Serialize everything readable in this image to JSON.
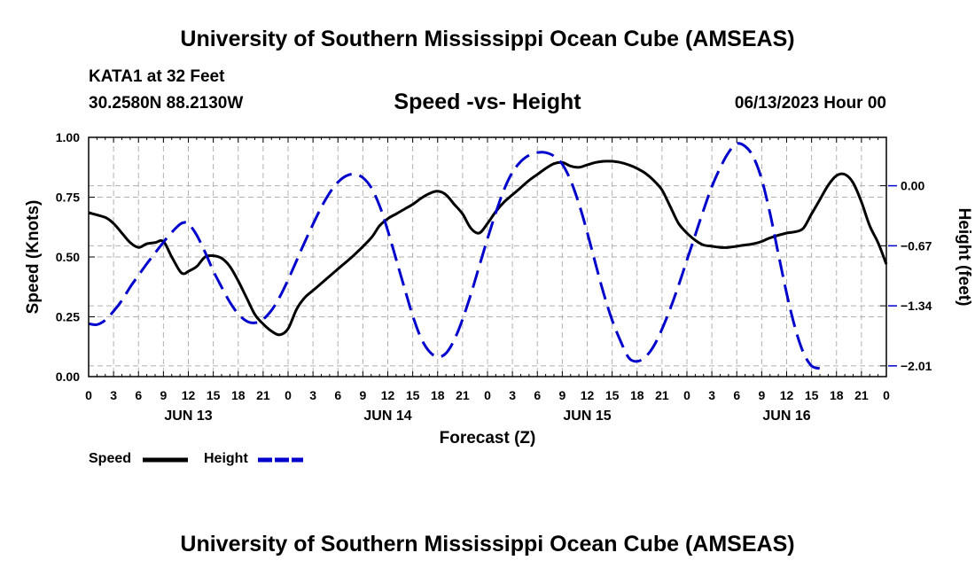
{
  "header": {
    "title": "University of Southern Mississippi Ocean Cube (AMSEAS)",
    "station": "KATA1 at 32 Feet",
    "coords": "30.2580N  88.2130W",
    "chart_title": "Speed -vs- Height",
    "date": "06/13/2023 Hour 00"
  },
  "footer": {
    "title": "University of Southern Mississippi Ocean Cube (AMSEAS)"
  },
  "colors": {
    "speed": "#000000",
    "height": "#0000cc",
    "grid": "#b0b0b0"
  },
  "chart_data": {
    "type": "line",
    "title": "Speed -vs- Height",
    "xlabel": "Forecast (Z)",
    "ylabel": "Speed (Knots)",
    "y2label": "Height (feet)",
    "xlim": [
      0,
      96
    ],
    "ylim": [
      0,
      1
    ],
    "y2lim": [
      -2.13,
      0.54
    ],
    "x_tick_step": 3,
    "x_ticks": [
      "0",
      "3",
      "6",
      "9",
      "12",
      "15",
      "18",
      "21",
      "0",
      "3",
      "6",
      "9",
      "12",
      "15",
      "18",
      "21",
      "0",
      "3",
      "6",
      "9",
      "12",
      "15",
      "18",
      "21",
      "0",
      "3",
      "6",
      "9",
      "12",
      "15",
      "18",
      "21",
      "0"
    ],
    "y_ticks": [
      "0.00",
      "0.25",
      "0.50",
      "0.75",
      "1.00"
    ],
    "y2_ticks": [
      {
        "value": 0.0,
        "label": "0.00"
      },
      {
        "value": -0.67,
        "label": "−0.67"
      },
      {
        "value": -1.34,
        "label": "−1.34"
      },
      {
        "value": -2.01,
        "label": "−2.01"
      }
    ],
    "day_labels": [
      {
        "x": 12,
        "label": "JUN 13"
      },
      {
        "x": 36,
        "label": "JUN 14"
      },
      {
        "x": 60,
        "label": "JUN 15"
      },
      {
        "x": 84,
        "label": "JUN 16"
      }
    ],
    "legend": [
      {
        "name": "Speed",
        "style": "solid"
      },
      {
        "name": "Height",
        "style": "dashed"
      }
    ],
    "series": [
      {
        "name": "Speed",
        "axis": "left",
        "points": [
          [
            0,
            0.685
          ],
          [
            2,
            0.665
          ],
          [
            3,
            0.64
          ],
          [
            4,
            0.6
          ],
          [
            5,
            0.56
          ],
          [
            6,
            0.54
          ],
          [
            7,
            0.555
          ],
          [
            8,
            0.56
          ],
          [
            9,
            0.565
          ],
          [
            10,
            0.5
          ],
          [
            11,
            0.44
          ],
          [
            11.5,
            0.43
          ],
          [
            12,
            0.44
          ],
          [
            13,
            0.46
          ],
          [
            14,
            0.5
          ],
          [
            15,
            0.505
          ],
          [
            16,
            0.495
          ],
          [
            17,
            0.46
          ],
          [
            18,
            0.4
          ],
          [
            19,
            0.33
          ],
          [
            20,
            0.26
          ],
          [
            21,
            0.22
          ],
          [
            22,
            0.19
          ],
          [
            23,
            0.175
          ],
          [
            24,
            0.2
          ],
          [
            25,
            0.28
          ],
          [
            26,
            0.33
          ],
          [
            27,
            0.36
          ],
          [
            28,
            0.39
          ],
          [
            30,
            0.45
          ],
          [
            32,
            0.51
          ],
          [
            34,
            0.58
          ],
          [
            35,
            0.63
          ],
          [
            36,
            0.66
          ],
          [
            37,
            0.68
          ],
          [
            38,
            0.7
          ],
          [
            39,
            0.72
          ],
          [
            40,
            0.745
          ],
          [
            41,
            0.765
          ],
          [
            42,
            0.775
          ],
          [
            43,
            0.76
          ],
          [
            44,
            0.72
          ],
          [
            45,
            0.68
          ],
          [
            46,
            0.62
          ],
          [
            47,
            0.6
          ],
          [
            48,
            0.64
          ],
          [
            49,
            0.69
          ],
          [
            50,
            0.73
          ],
          [
            51,
            0.76
          ],
          [
            52,
            0.79
          ],
          [
            53,
            0.82
          ],
          [
            54,
            0.845
          ],
          [
            55,
            0.87
          ],
          [
            56,
            0.89
          ],
          [
            57,
            0.895
          ],
          [
            58,
            0.88
          ],
          [
            59,
            0.875
          ],
          [
            60,
            0.885
          ],
          [
            61,
            0.895
          ],
          [
            62,
            0.9
          ],
          [
            63,
            0.9
          ],
          [
            64,
            0.895
          ],
          [
            65,
            0.885
          ],
          [
            66,
            0.87
          ],
          [
            67,
            0.85
          ],
          [
            68,
            0.82
          ],
          [
            69,
            0.78
          ],
          [
            70,
            0.71
          ],
          [
            71,
            0.64
          ],
          [
            72,
            0.6
          ],
          [
            73,
            0.57
          ],
          [
            74,
            0.55
          ],
          [
            75,
            0.545
          ],
          [
            76,
            0.54
          ],
          [
            77,
            0.54
          ],
          [
            78,
            0.545
          ],
          [
            79,
            0.55
          ],
          [
            80,
            0.555
          ],
          [
            81,
            0.565
          ],
          [
            82,
            0.58
          ],
          [
            84,
            0.6
          ],
          [
            85,
            0.605
          ],
          [
            86,
            0.62
          ],
          [
            87,
            0.68
          ],
          [
            88,
            0.74
          ],
          [
            89,
            0.8
          ],
          [
            90,
            0.84
          ],
          [
            91,
            0.845
          ],
          [
            92,
            0.81
          ],
          [
            93,
            0.73
          ],
          [
            94,
            0.63
          ],
          [
            95,
            0.56
          ],
          [
            96,
            0.47
          ]
        ]
      },
      {
        "name": "Height",
        "axis": "right",
        "points": [
          [
            0,
            -1.54
          ],
          [
            1,
            -1.55
          ],
          [
            2,
            -1.5
          ],
          [
            3,
            -1.4
          ],
          [
            4,
            -1.28
          ],
          [
            5,
            -1.13
          ],
          [
            6,
            -1.0
          ],
          [
            7,
            -0.87
          ],
          [
            8,
            -0.75
          ],
          [
            9,
            -0.63
          ],
          [
            10,
            -0.52
          ],
          [
            11,
            -0.43
          ],
          [
            11.5,
            -0.41
          ],
          [
            12,
            -0.42
          ],
          [
            13,
            -0.55
          ],
          [
            14,
            -0.74
          ],
          [
            15,
            -0.95
          ],
          [
            16,
            -1.13
          ],
          [
            17,
            -1.3
          ],
          [
            18,
            -1.43
          ],
          [
            19,
            -1.51
          ],
          [
            20,
            -1.53
          ],
          [
            21,
            -1.49
          ],
          [
            22,
            -1.39
          ],
          [
            23,
            -1.24
          ],
          [
            24,
            -1.05
          ],
          [
            25,
            -0.84
          ],
          [
            26,
            -0.63
          ],
          [
            27,
            -0.43
          ],
          [
            28,
            -0.24
          ],
          [
            29,
            -0.08
          ],
          [
            30,
            0.04
          ],
          [
            31,
            0.11
          ],
          [
            32,
            0.13
          ],
          [
            33,
            0.09
          ],
          [
            34,
            -0.02
          ],
          [
            35,
            -0.22
          ],
          [
            36,
            -0.5
          ],
          [
            37,
            -0.82
          ],
          [
            38,
            -1.14
          ],
          [
            39,
            -1.45
          ],
          [
            40,
            -1.7
          ],
          [
            41,
            -1.85
          ],
          [
            42,
            -1.91
          ],
          [
            43,
            -1.87
          ],
          [
            44,
            -1.72
          ],
          [
            45,
            -1.49
          ],
          [
            46,
            -1.21
          ],
          [
            47,
            -0.9
          ],
          [
            48,
            -0.59
          ],
          [
            49,
            -0.3
          ],
          [
            50,
            -0.04
          ],
          [
            51,
            0.15
          ],
          [
            52,
            0.27
          ],
          [
            53,
            0.34
          ],
          [
            54,
            0.37
          ],
          [
            55,
            0.37
          ],
          [
            56,
            0.33
          ],
          [
            57,
            0.24
          ],
          [
            58,
            0.06
          ],
          [
            59,
            -0.2
          ],
          [
            60,
            -0.52
          ],
          [
            61,
            -0.87
          ],
          [
            62,
            -1.21
          ],
          [
            63,
            -1.5
          ],
          [
            64,
            -1.73
          ],
          [
            65,
            -1.92
          ],
          [
            66,
            -1.96
          ],
          [
            67,
            -1.91
          ],
          [
            68,
            -1.79
          ],
          [
            69,
            -1.6
          ],
          [
            70,
            -1.37
          ],
          [
            71,
            -1.11
          ],
          [
            72,
            -0.83
          ],
          [
            73,
            -0.55
          ],
          [
            74,
            -0.27
          ],
          [
            75,
            -0.01
          ],
          [
            76,
            0.2
          ],
          [
            77,
            0.37
          ],
          [
            78,
            0.47
          ],
          [
            79,
            0.44
          ],
          [
            80,
            0.32
          ],
          [
            81,
            0.07
          ],
          [
            82,
            -0.31
          ],
          [
            83,
            -0.76
          ],
          [
            84,
            -1.2
          ],
          [
            85,
            -1.58
          ],
          [
            86,
            -1.86
          ],
          [
            87,
            -2.01
          ],
          [
            88,
            -2.04
          ]
        ]
      }
    ]
  }
}
